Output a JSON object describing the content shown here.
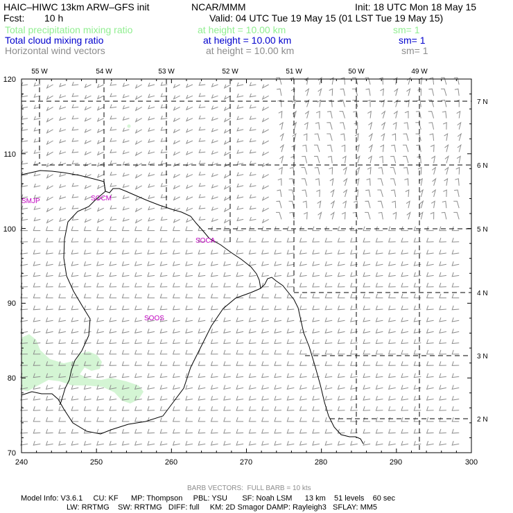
{
  "header": {
    "model": "HAIC–HIWC 13km ARW–GFS init",
    "org": "NCAR/MMM",
    "init": "Init: 18 UTC Mon 18 May 15",
    "fcst_label": "Fcst:",
    "fcst_value": "10 h",
    "valid": "Valid: 04 UTC Tue 19 May 15 (01 LST Tue 19 May 15)"
  },
  "fields": [
    {
      "name": "Total precipitation mixing ratio",
      "height": "at height = 10.00 km",
      "sm": "sm= 1",
      "color": "#90ee90"
    },
    {
      "name": "Total cloud mixing ratio",
      "height": "at height = 10.00 km",
      "sm": "sm= 1",
      "color": "#0000cd"
    },
    {
      "name": "Horizontal wind vectors",
      "height": "at height = 10.00 km",
      "sm": "sm= 1",
      "color": "#8c8c8c"
    }
  ],
  "map": {
    "x_ticks": [
      "240",
      "250",
      "260",
      "270",
      "280",
      "290",
      "300"
    ],
    "y_ticks": [
      "70",
      "80",
      "90",
      "100",
      "110",
      "120"
    ],
    "lon_labels": [
      "55 W",
      "54 W",
      "53 W",
      "52 W",
      "51 W",
      "50 W",
      "49 W"
    ],
    "lat_labels": [
      "7 N",
      "6 N",
      "5 N",
      "4 N",
      "3 N",
      "2 N"
    ],
    "stations": [
      "SMJP",
      "SOCM",
      "SOCA",
      "SOOS"
    ],
    "precip_color": "#d4f5d4",
    "coast_color": "#000000",
    "barb_color": "#8c8c8c",
    "station_color": "#c000c0"
  },
  "footer": {
    "barb_note": "BARB VECTORS:  FULL BARB = 10 kts",
    "line1": "Model Info: V3.6.1     CU: KF      MP: Thompson     PBL: YSU       SF: Noah LSM      13 km    51 levels    60 sec",
    "line2": "LW: RRTMG    SW: RRTMG   DIFF: full     KM: 2D Smagor DAMP: Rayleigh3   SFLAY: MM5"
  }
}
